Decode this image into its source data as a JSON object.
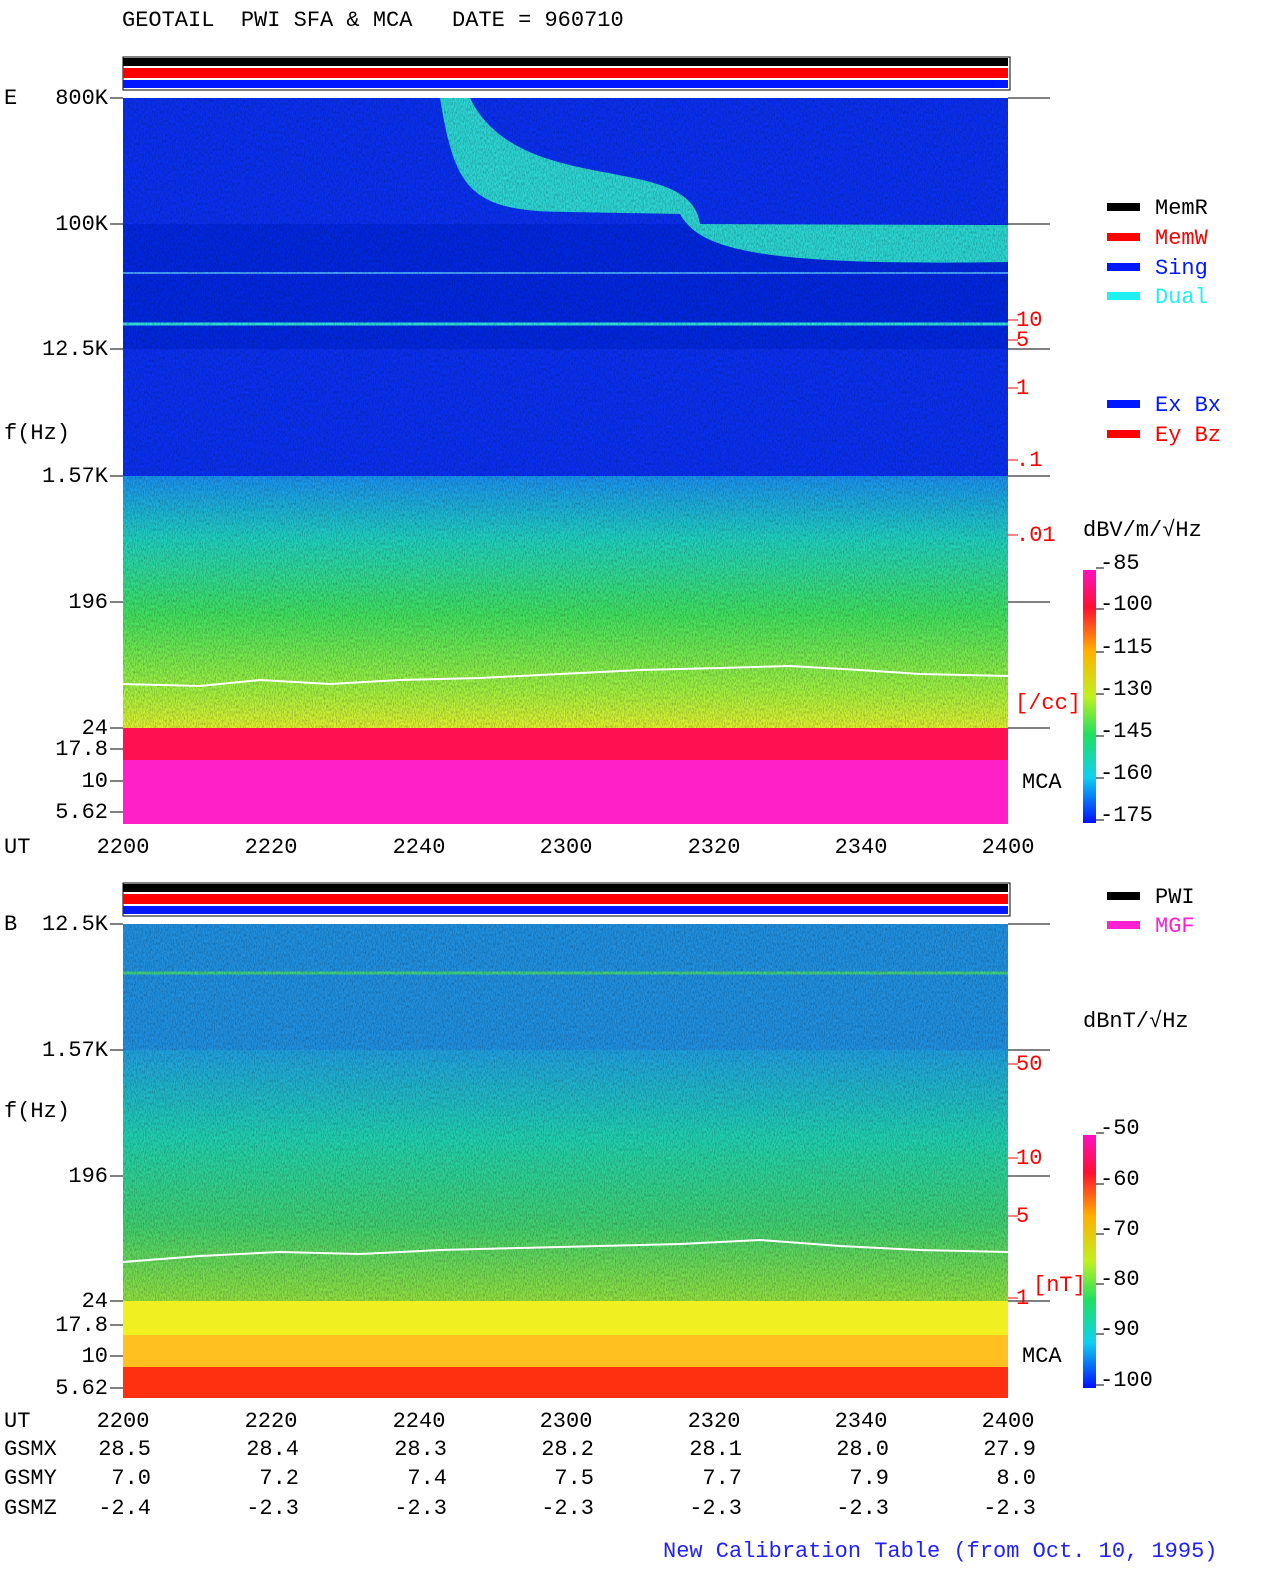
{
  "header": {
    "title": "GEOTAIL  PWI SFA & MCA   DATE = 960710"
  },
  "panel_e": {
    "label": "E",
    "y_axis_label": "f(Hz)",
    "y_ticks": [
      "800K",
      "100K",
      "12.5K",
      "1.57K",
      "196",
      "24",
      "17.8",
      "10",
      "5.62"
    ],
    "x_axis_label": "UT",
    "x_ticks": [
      "2200",
      "2220",
      "2240",
      "2300",
      "2320",
      "2340",
      "2400"
    ],
    "density_ticks": [
      "10",
      "5",
      "1",
      ".1",
      ".01"
    ],
    "density_unit": "[/cc]",
    "mca_label": "MCA",
    "colorbar_unit": "dBV/m/√Hz",
    "colorbar_ticks": [
      "-85",
      "-100",
      "-115",
      "-130",
      "-145",
      "-160",
      "-175"
    ],
    "legend": [
      "MemR",
      "MemW",
      "Sing",
      "Dual"
    ],
    "legend2": [
      "Ex Bx",
      "Ey Bz"
    ]
  },
  "panel_b": {
    "label": "B",
    "y_axis_label": "f(Hz)",
    "y_ticks": [
      "12.5K",
      "1.57K",
      "196",
      "24",
      "17.8",
      "10",
      "5.62"
    ],
    "x_axis_label": "UT",
    "x_ticks": [
      "2200",
      "2220",
      "2240",
      "2300",
      "2320",
      "2340",
      "2400"
    ],
    "field_ticks": [
      "50",
      "10",
      "5",
      "1"
    ],
    "field_unit": "[nT]",
    "mca_label": "MCA",
    "colorbar_unit": "dBnT/√Hz",
    "colorbar_ticks": [
      "-50",
      "-60",
      "-70",
      "-80",
      "-90",
      "-100"
    ],
    "legend": [
      "PWI",
      "MGF"
    ]
  },
  "orbit": {
    "rows": [
      [
        "GSMX",
        "28.5",
        "28.4",
        "28.3",
        "28.2",
        "28.1",
        "28.0",
        "27.9"
      ],
      [
        "GSMY",
        "7.0",
        "7.2",
        "7.4",
        "7.5",
        "7.7",
        "7.9",
        "8.0"
      ],
      [
        "GSMZ",
        "-2.4",
        "-2.3",
        "-2.3",
        "-2.3",
        "-2.3",
        "-2.3",
        "-2.3"
      ]
    ]
  },
  "footer": "New Calibration Table (from Oct. 10, 1995)"
}
